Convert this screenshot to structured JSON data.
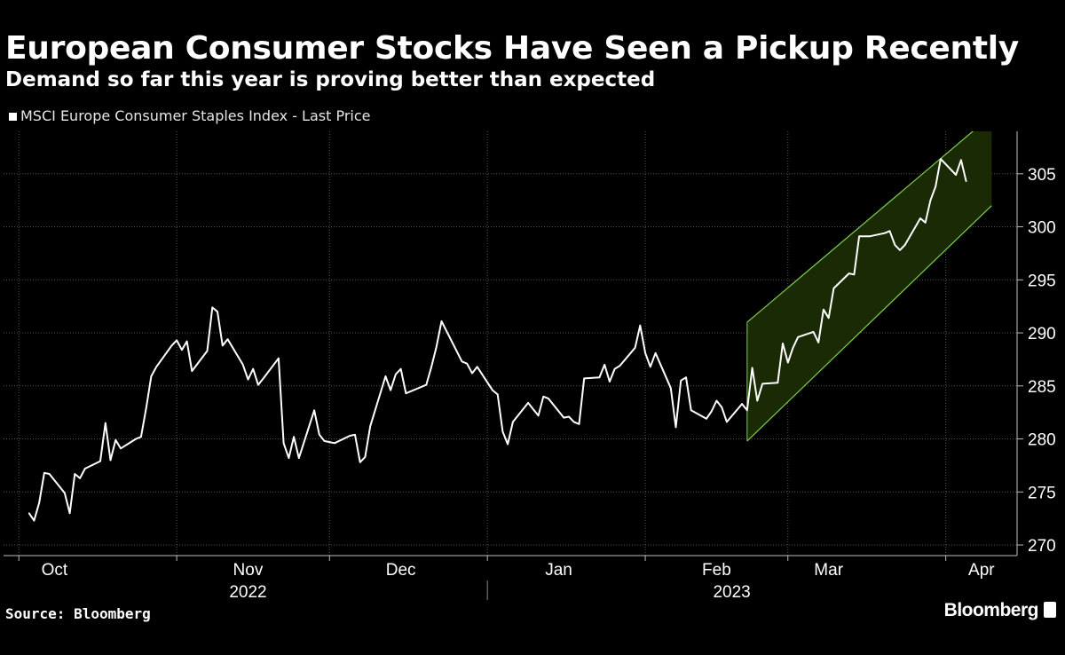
{
  "header": {
    "title": "European Consumer Stocks Have Seen a Pickup Recently",
    "subtitle": "Demand so far this year is proving better than expected"
  },
  "legend": {
    "label": "MSCI Europe Consumer Staples Index - Last Price"
  },
  "footer": {
    "source": "Source: Bloomberg",
    "brand": "Bloomberg",
    "brand_icon": "bar-chart-icon"
  },
  "colors": {
    "background": "#000000",
    "line": "#ffffff",
    "channel_fill": "#1a2a05",
    "channel_edge": "#7fd14a",
    "grid": "#555555"
  },
  "chart_data": {
    "type": "line",
    "ylim": [
      269,
      309
    ],
    "yticks": [
      270,
      275,
      280,
      285,
      290,
      295,
      300,
      305
    ],
    "grid": true,
    "legend_position": "top-left",
    "x_month_labels": [
      "Oct",
      "Nov",
      "Dec",
      "Jan",
      "Feb",
      "Mar",
      "Apr"
    ],
    "x_year_labels": [
      "2022",
      "2023"
    ],
    "series": [
      {
        "name": "MSCI Europe Consumer Staples Index - Last Price",
        "points": [
          [
            "2022-10-03",
            273.0
          ],
          [
            "2022-10-04",
            272.3
          ],
          [
            "2022-10-05",
            274.0
          ],
          [
            "2022-10-06",
            276.8
          ],
          [
            "2022-10-07",
            276.7
          ],
          [
            "2022-10-10",
            274.9
          ],
          [
            "2022-10-11",
            273.0
          ],
          [
            "2022-10-12",
            276.7
          ],
          [
            "2022-10-13",
            276.3
          ],
          [
            "2022-10-14",
            277.2
          ],
          [
            "2022-10-17",
            277.9
          ],
          [
            "2022-10-18",
            281.5
          ],
          [
            "2022-10-19",
            278.0
          ],
          [
            "2022-10-20",
            279.9
          ],
          [
            "2022-10-21",
            279.1
          ],
          [
            "2022-10-24",
            280.0
          ],
          [
            "2022-10-25",
            280.2
          ],
          [
            "2022-10-26",
            282.9
          ],
          [
            "2022-10-27",
            285.9
          ],
          [
            "2022-10-28",
            286.8
          ],
          [
            "2022-10-31",
            288.8
          ],
          [
            "2022-11-01",
            289.3
          ],
          [
            "2022-11-02",
            288.4
          ],
          [
            "2022-11-03",
            289.2
          ],
          [
            "2022-11-04",
            286.4
          ],
          [
            "2022-11-07",
            288.3
          ],
          [
            "2022-11-08",
            292.4
          ],
          [
            "2022-11-09",
            292.0
          ],
          [
            "2022-11-10",
            288.8
          ],
          [
            "2022-11-11",
            289.4
          ],
          [
            "2022-11-14",
            287.0
          ],
          [
            "2022-11-15",
            285.6
          ],
          [
            "2022-11-16",
            286.6
          ],
          [
            "2022-11-17",
            285.1
          ],
          [
            "2022-11-18",
            285.7
          ],
          [
            "2022-11-21",
            287.6
          ],
          [
            "2022-11-22",
            279.6
          ],
          [
            "2022-11-23",
            278.2
          ],
          [
            "2022-11-24",
            280.2
          ],
          [
            "2022-11-25",
            278.2
          ],
          [
            "2022-11-28",
            282.7
          ],
          [
            "2022-11-29",
            280.4
          ],
          [
            "2022-11-30",
            279.8
          ],
          [
            "2022-12-01",
            279.7
          ],
          [
            "2022-12-02",
            279.6
          ],
          [
            "2022-12-05",
            280.3
          ],
          [
            "2022-12-06",
            280.4
          ],
          [
            "2022-12-07",
            277.8
          ],
          [
            "2022-12-08",
            278.3
          ],
          [
            "2022-12-09",
            281.2
          ],
          [
            "2022-12-12",
            285.9
          ],
          [
            "2022-12-13",
            284.6
          ],
          [
            "2022-12-14",
            286.1
          ],
          [
            "2022-12-15",
            286.6
          ],
          [
            "2022-12-16",
            284.3
          ],
          [
            "2022-12-19",
            284.9
          ],
          [
            "2022-12-20",
            285.1
          ],
          [
            "2022-12-21",
            286.8
          ],
          [
            "2022-12-22",
            288.7
          ],
          [
            "2022-12-23",
            291.1
          ],
          [
            "2022-12-27",
            287.3
          ],
          [
            "2022-12-28",
            287.1
          ],
          [
            "2022-12-29",
            286.2
          ],
          [
            "2022-12-30",
            286.8
          ],
          [
            "2023-01-02",
            284.6
          ],
          [
            "2023-01-03",
            284.2
          ],
          [
            "2023-01-04",
            280.7
          ],
          [
            "2023-01-05",
            279.5
          ],
          [
            "2023-01-06",
            281.6
          ],
          [
            "2023-01-09",
            283.4
          ],
          [
            "2023-01-10",
            282.8
          ],
          [
            "2023-01-11",
            282.2
          ],
          [
            "2023-01-12",
            284.0
          ],
          [
            "2023-01-13",
            283.8
          ],
          [
            "2023-01-16",
            282.0
          ],
          [
            "2023-01-17",
            282.1
          ],
          [
            "2023-01-18",
            281.6
          ],
          [
            "2023-01-19",
            281.4
          ],
          [
            "2023-01-20",
            285.7
          ],
          [
            "2023-01-23",
            285.8
          ],
          [
            "2023-01-24",
            287.0
          ],
          [
            "2023-01-25",
            285.4
          ],
          [
            "2023-01-26",
            286.6
          ],
          [
            "2023-01-27",
            286.9
          ],
          [
            "2023-01-30",
            288.6
          ],
          [
            "2023-01-31",
            290.7
          ],
          [
            "2023-02-01",
            288.1
          ],
          [
            "2023-02-02",
            286.8
          ],
          [
            "2023-02-03",
            288.1
          ],
          [
            "2023-02-06",
            284.8
          ],
          [
            "2023-02-07",
            281.1
          ],
          [
            "2023-02-08",
            285.5
          ],
          [
            "2023-02-09",
            285.8
          ],
          [
            "2023-02-10",
            282.7
          ],
          [
            "2023-02-13",
            281.9
          ],
          [
            "2023-02-14",
            282.6
          ],
          [
            "2023-02-15",
            283.6
          ],
          [
            "2023-02-16",
            283.0
          ],
          [
            "2023-02-17",
            281.6
          ],
          [
            "2023-02-20",
            283.3
          ],
          [
            "2023-02-21",
            282.7
          ],
          [
            "2023-02-22",
            286.7
          ],
          [
            "2023-02-23",
            283.6
          ],
          [
            "2023-02-24",
            285.2
          ],
          [
            "2023-02-27",
            285.3
          ],
          [
            "2023-02-28",
            289.0
          ],
          [
            "2023-03-01",
            287.2
          ],
          [
            "2023-03-02",
            288.6
          ],
          [
            "2023-03-03",
            289.6
          ],
          [
            "2023-03-06",
            290.1
          ],
          [
            "2023-03-07",
            289.1
          ],
          [
            "2023-03-08",
            292.2
          ],
          [
            "2023-03-09",
            291.4
          ],
          [
            "2023-03-10",
            294.2
          ],
          [
            "2023-03-13",
            295.6
          ],
          [
            "2023-03-14",
            295.5
          ],
          [
            "2023-03-15",
            299.1
          ],
          [
            "2023-03-16",
            299.1
          ],
          [
            "2023-03-17",
            299.1
          ],
          [
            "2023-03-20",
            299.4
          ],
          [
            "2023-03-21",
            299.6
          ],
          [
            "2023-03-22",
            298.3
          ],
          [
            "2023-03-23",
            297.8
          ],
          [
            "2023-03-24",
            298.3
          ],
          [
            "2023-03-27",
            300.8
          ],
          [
            "2023-03-28",
            300.4
          ],
          [
            "2023-03-29",
            302.5
          ],
          [
            "2023-03-30",
            303.8
          ],
          [
            "2023-03-31",
            306.4
          ],
          [
            "2023-04-03",
            304.9
          ],
          [
            "2023-04-04",
            306.3
          ],
          [
            "2023-04-05",
            304.3
          ]
        ]
      }
    ],
    "trend_channel": {
      "start_date": "2023-02-21",
      "end_date": "2023-04-10",
      "upper": [
        291.0,
        310.5
      ],
      "lower": [
        279.8,
        302.0
      ]
    }
  }
}
